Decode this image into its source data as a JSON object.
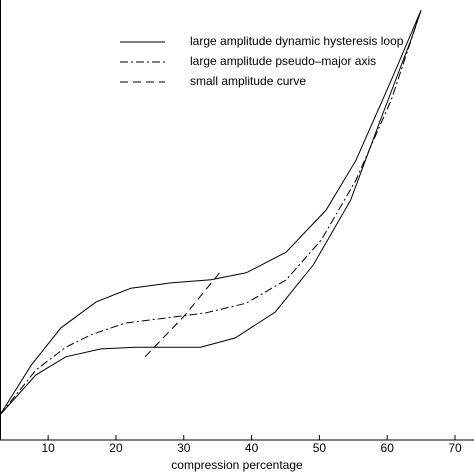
{
  "chart_data": {
    "type": "line",
    "xlabel": "compression percentage",
    "xlim": [
      2.9,
      72.8
    ],
    "xticks": [
      10,
      20,
      30,
      40,
      50,
      60,
      70
    ],
    "ylim": [
      0,
      100
    ],
    "legend": "upper-right",
    "series": [
      {
        "name": "large amplitude dynamic hysteresis loop",
        "color": "#000000",
        "dash": "solid",
        "x": [
          2.9,
          7.5,
          11.9,
          17.1,
          22.2,
          28.1,
          34.0,
          39.2,
          45.1,
          51.0,
          55.4,
          60.6,
          65.0,
          63.5,
          59.0,
          54.6,
          49.1,
          43.5,
          37.6,
          32.5,
          23.0,
          17.8,
          12.6,
          8.2,
          2.9
        ],
        "values": [
          5.7,
          17.0,
          25.5,
          31.4,
          34.5,
          35.7,
          36.4,
          38.0,
          42.7,
          52.3,
          63.6,
          81.8,
          97.7,
          90.9,
          72.7,
          54.5,
          39.8,
          29.1,
          23.2,
          21.1,
          21.1,
          20.7,
          18.9,
          14.8,
          5.7
        ]
      },
      {
        "name": "large amplitude pseudo–major axis",
        "color": "#000000",
        "dash": "dashdot",
        "x": [
          2.9,
          8.2,
          12.6,
          16.3,
          21.4,
          27.3,
          33.3,
          39.2,
          45.1,
          50.3,
          55.4,
          60.6,
          65.0
        ],
        "values": [
          5.7,
          15.9,
          21.1,
          23.9,
          26.6,
          27.7,
          28.9,
          31.1,
          36.4,
          45.5,
          59.1,
          77.3,
          97.7
        ]
      },
      {
        "name": "small amplitude curve",
        "color": "#000000",
        "dash": "dashed",
        "x": [
          24.3,
          30.2,
          35.6
        ],
        "values": [
          18.9,
          28.4,
          38.6
        ]
      }
    ]
  }
}
